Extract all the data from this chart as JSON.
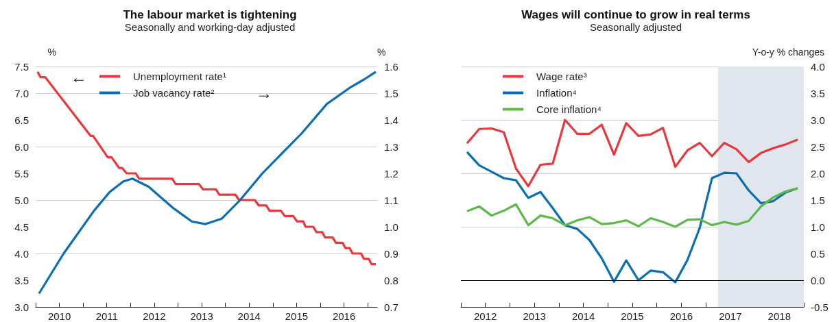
{
  "chart_data": [
    {
      "type": "line",
      "title": "The labour market is tightening",
      "subtitle": "Seasonally and working-day adjusted",
      "ylabel": "%",
      "y2label": "%",
      "annotations": [
        "←",
        "→"
      ],
      "series": [
        {
          "name": "Unemployment rate¹",
          "color": "#e8383d",
          "x": [
            2010.04,
            2010.1,
            2010.2,
            2011.16,
            2011.21,
            2011.52,
            2011.6,
            2011.76,
            2011.82,
            2011.92,
            2012.11,
            2012.18,
            2012.88,
            2012.95,
            2013.44,
            2013.53,
            2013.8,
            2013.87,
            2014.21,
            2014.29,
            2014.62,
            2014.7,
            2014.86,
            2014.93,
            2015.17,
            2015.25,
            2015.43,
            2015.51,
            2015.64,
            2015.69,
            2015.85,
            2015.92,
            2016.04,
            2016.1,
            2016.26,
            2016.33,
            2016.47,
            2016.53,
            2016.62,
            2016.68,
            2016.86,
            2016.92,
            2017.02,
            2017.08,
            2017.17
          ],
          "values": [
            7.4,
            7.3,
            7.3,
            6.2,
            6.2,
            5.8,
            5.8,
            5.6,
            5.6,
            5.5,
            5.5,
            5.4,
            5.4,
            5.3,
            5.3,
            5.2,
            5.2,
            5.1,
            5.1,
            5.0,
            5.0,
            4.9,
            4.9,
            4.8,
            4.8,
            4.7,
            4.7,
            4.6,
            4.6,
            4.5,
            4.5,
            4.4,
            4.4,
            4.3,
            4.3,
            4.2,
            4.2,
            4.1,
            4.1,
            4.0,
            4.0,
            3.9,
            3.9,
            3.8,
            3.8
          ]
        },
        {
          "name": "Job vacancy rate²",
          "color": "#0a6eb4",
          "axis": "y2",
          "x": [
            2010.07,
            2010.59,
            2011.23,
            2011.56,
            2011.85,
            2012.04,
            2012.38,
            2012.9,
            2013.29,
            2013.58,
            2013.92,
            2014.31,
            2014.78,
            2015.22,
            2015.61,
            2016.14,
            2016.62,
            2016.91,
            2017.17
          ],
          "values": [
            0.75,
            0.9,
            1.06,
            1.13,
            1.17,
            1.18,
            1.15,
            1.07,
            1.02,
            1.01,
            1.03,
            1.1,
            1.2,
            1.28,
            1.35,
            1.46,
            1.52,
            1.55,
            1.58
          ]
        }
      ],
      "xlim": [
        2010,
        2017.2
      ],
      "xticks": [
        {
          "value": 2010,
          "label": null
        },
        {
          "value": 2010.5,
          "label": "2010"
        },
        {
          "value": 2011,
          "label": null
        },
        {
          "value": 2011.5,
          "label": "2011"
        },
        {
          "value": 2012,
          "label": null
        },
        {
          "value": 2012.5,
          "label": "2012"
        },
        {
          "value": 2013,
          "label": null
        },
        {
          "value": 2013.5,
          "label": "2013"
        },
        {
          "value": 2014,
          "label": null
        },
        {
          "value": 2014.5,
          "label": "2014"
        },
        {
          "value": 2015,
          "label": null
        },
        {
          "value": 2015.5,
          "label": "2015"
        },
        {
          "value": 2016,
          "label": null
        },
        {
          "value": 2016.5,
          "label": "2016"
        },
        {
          "value": 2017,
          "label": null
        }
      ],
      "ylim": [
        3,
        7.5
      ],
      "yticks": [
        {
          "value": 3,
          "label": "3.0"
        },
        {
          "value": 3.5,
          "label": "3.5"
        },
        {
          "value": 4,
          "label": "4.0"
        },
        {
          "value": 4.5,
          "label": "4.5"
        },
        {
          "value": 5,
          "label": "5.0"
        },
        {
          "value": 5.5,
          "label": "5.5"
        },
        {
          "value": 6,
          "label": "6.0"
        },
        {
          "value": 6.5,
          "label": "6.5"
        },
        {
          "value": 7,
          "label": "7.0"
        },
        {
          "value": 7.5,
          "label": "7.5"
        }
      ],
      "y2lim": [
        0.7,
        1.6
      ],
      "y2ticks": [
        {
          "value": 0.7,
          "label": "0.7"
        },
        {
          "value": 0.8,
          "label": "0.8"
        },
        {
          "value": 0.9,
          "label": "0.9"
        },
        {
          "value": 1.0,
          "label": "1.0"
        },
        {
          "value": 1.1,
          "label": "1.1"
        },
        {
          "value": 1.2,
          "label": "1.2"
        },
        {
          "value": 1.3,
          "label": "1.3"
        },
        {
          "value": 1.4,
          "label": "1.4"
        },
        {
          "value": 1.5,
          "label": "1.5"
        },
        {
          "value": 1.6,
          "label": "1.6"
        }
      ],
      "grid": "y",
      "legend": "top left",
      "marker": "none",
      "line_style": "solid"
    },
    {
      "type": "line",
      "title": "Wages will continue to grow in real terms",
      "subtitle": "Seasonally adjusted",
      "y2label": "Y-o-y % changes",
      "x": [
        2012.125,
        2012.375,
        2012.625,
        2012.875,
        2013.125,
        2013.375,
        2013.625,
        2013.875,
        2014.125,
        2014.375,
        2014.625,
        2014.875,
        2015.125,
        2015.375,
        2015.625,
        2015.875,
        2016.125,
        2016.375,
        2016.625,
        2016.875,
        2017.125,
        2017.375,
        2017.625,
        2017.875,
        2018.125,
        2018.375,
        2018.625,
        2018.875
      ],
      "series": [
        {
          "name": "Wage rate³",
          "color": "#e8383d",
          "axis": "y2",
          "values": [
            2.56,
            2.83,
            2.84,
            2.77,
            2.09,
            1.76,
            2.16,
            2.18,
            3.0,
            2.74,
            2.74,
            2.91,
            2.35,
            2.94,
            2.7,
            2.73,
            2.85,
            2.12,
            2.43,
            2.57,
            2.32,
            2.57,
            2.45,
            2.21,
            2.38,
            2.47,
            2.54,
            2.63
          ]
        },
        {
          "name": "Inflation⁴",
          "color": "#0a6eb4",
          "axis": "y2",
          "values": [
            2.4,
            2.15,
            2.03,
            1.91,
            1.87,
            1.54,
            1.65,
            1.35,
            1.03,
            0.96,
            0.75,
            0.41,
            -0.03,
            0.37,
            0.0,
            0.18,
            0.15,
            -0.04,
            0.38,
            0.98,
            1.91,
            2.01,
            2.0,
            1.68,
            1.44,
            1.48,
            1.64,
            1.72
          ]
        },
        {
          "name": "Core inflation⁴",
          "color": "#5cb848",
          "axis": "y2",
          "values": [
            1.29,
            1.38,
            1.21,
            1.3,
            1.42,
            1.03,
            1.21,
            1.16,
            1.03,
            1.12,
            1.18,
            1.05,
            1.07,
            1.12,
            1.01,
            1.16,
            1.09,
            1.0,
            1.13,
            1.14,
            1.03,
            1.09,
            1.04,
            1.11,
            1.38,
            1.55,
            1.66,
            1.72
          ]
        }
      ],
      "xlim": [
        2012,
        2019
      ],
      "xticks": [
        {
          "value": 2012,
          "label": null
        },
        {
          "value": 2012.5,
          "label": "2012"
        },
        {
          "value": 2013,
          "label": null
        },
        {
          "value": 2013.5,
          "label": "2013"
        },
        {
          "value": 2014,
          "label": null
        },
        {
          "value": 2014.5,
          "label": "2014"
        },
        {
          "value": 2015,
          "label": null
        },
        {
          "value": 2015.5,
          "label": "2015"
        },
        {
          "value": 2016,
          "label": null
        },
        {
          "value": 2016.5,
          "label": "2016"
        },
        {
          "value": 2017,
          "label": null
        },
        {
          "value": 2017.5,
          "label": "2017"
        },
        {
          "value": 2018,
          "label": null
        },
        {
          "value": 2018.5,
          "label": "2018"
        },
        {
          "value": 2019,
          "label": null
        }
      ],
      "y2lim": [
        -0.5,
        4
      ],
      "y2ticks": [
        {
          "value": -0.5,
          "label": "-0.5"
        },
        {
          "value": 0,
          "label": "0.0"
        },
        {
          "value": 0.5,
          "label": "0.5"
        },
        {
          "value": 1,
          "label": "1.0"
        },
        {
          "value": 1.5,
          "label": "1.5"
        },
        {
          "value": 2,
          "label": "2.0"
        },
        {
          "value": 2.5,
          "label": "2.5"
        },
        {
          "value": 3,
          "label": "3.0"
        },
        {
          "value": 3.5,
          "label": "3.5"
        },
        {
          "value": 4,
          "label": "4.0"
        }
      ],
      "ref_lines": [
        {
          "axis": "y2",
          "value": 0,
          "color": "#000000"
        }
      ],
      "bands": [
        {
          "axis": "x",
          "from": 2017.25,
          "to": 2019,
          "color": "#e1e6ee"
        }
      ],
      "grid": "y",
      "legend": "top left",
      "marker": "none",
      "line_style": "solid"
    }
  ]
}
